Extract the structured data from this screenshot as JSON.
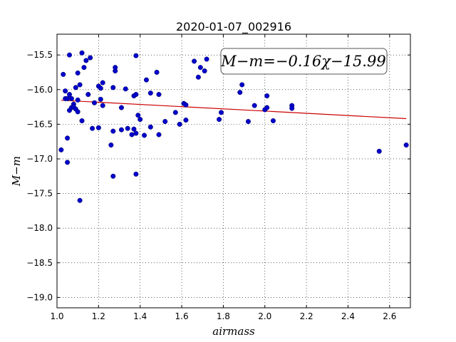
{
  "chart_data": {
    "type": "scatter",
    "title": "2020-01-07_002916",
    "xlabel": "airmass",
    "ylabel": "M−m",
    "xlim": [
      1.0,
      2.7
    ],
    "ylim": [
      -19.15,
      -15.2
    ],
    "y_inverted": true,
    "grid": true,
    "x_ticks": [
      1.0,
      1.2,
      1.4,
      1.6,
      1.8,
      2.0,
      2.2,
      2.4,
      2.6
    ],
    "x_tick_labels": [
      "1.0",
      "1.2",
      "1.4",
      "1.6",
      "1.8",
      "2.0",
      "2.2",
      "2.4",
      "2.6"
    ],
    "y_ticks": [
      -15.5,
      -16.0,
      -16.5,
      -17.0,
      -17.5,
      -18.0,
      -18.5,
      -19.0
    ],
    "y_tick_labels": [
      "−15.5",
      "−16.0",
      "−16.5",
      "−17.0",
      "−17.5",
      "−18.0",
      "−18.5",
      "−19.0"
    ],
    "annotation": "M−m=−0.16χ−15.99",
    "point_color": "#0000cc",
    "fit_color": "#cc0000",
    "fit": {
      "slope": -0.16,
      "intercept": -15.99,
      "x_range": [
        1.02,
        2.68
      ]
    },
    "series": [
      {
        "x": [
          1.02,
          1.03,
          1.04,
          1.04,
          1.05,
          1.05,
          1.05,
          1.06,
          1.06,
          1.06,
          1.07,
          1.07,
          1.08,
          1.08,
          1.09,
          1.09,
          1.1,
          1.1,
          1.1,
          1.11,
          1.11,
          1.12,
          1.12,
          1.13,
          1.14,
          1.15,
          1.16,
          1.17,
          1.18,
          1.2,
          1.2,
          1.21,
          1.21,
          1.22,
          1.22,
          1.26,
          1.27,
          1.27,
          1.27,
          1.28,
          1.28,
          1.31,
          1.31,
          1.33,
          1.34,
          1.36,
          1.37,
          1.37,
          1.38,
          1.38,
          1.38,
          1.38,
          1.39,
          1.4,
          1.42,
          1.43,
          1.45,
          1.45,
          1.48,
          1.49,
          1.49,
          1.52,
          1.57,
          1.59,
          1.61,
          1.62,
          1.62,
          1.66,
          1.68,
          1.69,
          1.71,
          1.72,
          1.78,
          1.79,
          1.88,
          1.89,
          1.92,
          1.95,
          2.0,
          2.01,
          2.01,
          2.04,
          2.13,
          2.13,
          2.55,
          2.68
        ],
        "y": [
          -16.87,
          -15.78,
          -16.13,
          -16.02,
          -16.7,
          -17.05,
          -16.13,
          -16.07,
          -15.5,
          -16.3,
          -16.13,
          -16.26,
          -16.21,
          -16.25,
          -15.97,
          -16.28,
          -16.32,
          -15.76,
          -16.15,
          -17.6,
          -15.93,
          -15.47,
          -16.45,
          -15.68,
          -15.58,
          -16.07,
          -15.54,
          -16.56,
          -16.19,
          -15.95,
          -16.55,
          -15.98,
          -16.14,
          -15.9,
          -16.23,
          -16.8,
          -16.6,
          -17.25,
          -15.97,
          -15.73,
          -15.68,
          -16.26,
          -16.58,
          -15.99,
          -16.56,
          -16.65,
          -16.09,
          -16.57,
          -15.51,
          -16.07,
          -16.63,
          -17.22,
          -16.37,
          -16.43,
          -16.66,
          -15.86,
          -16.05,
          -16.54,
          -15.75,
          -16.07,
          -16.65,
          -16.46,
          -16.33,
          -16.5,
          -16.2,
          -16.22,
          -16.44,
          -15.59,
          -15.82,
          -15.68,
          -15.73,
          -15.56,
          -16.43,
          -16.33,
          -16.04,
          -15.93,
          -16.46,
          -16.23,
          -16.29,
          -16.26,
          -16.09,
          -16.45,
          -16.23,
          -16.27,
          -16.89,
          -16.8
        ]
      }
    ]
  }
}
